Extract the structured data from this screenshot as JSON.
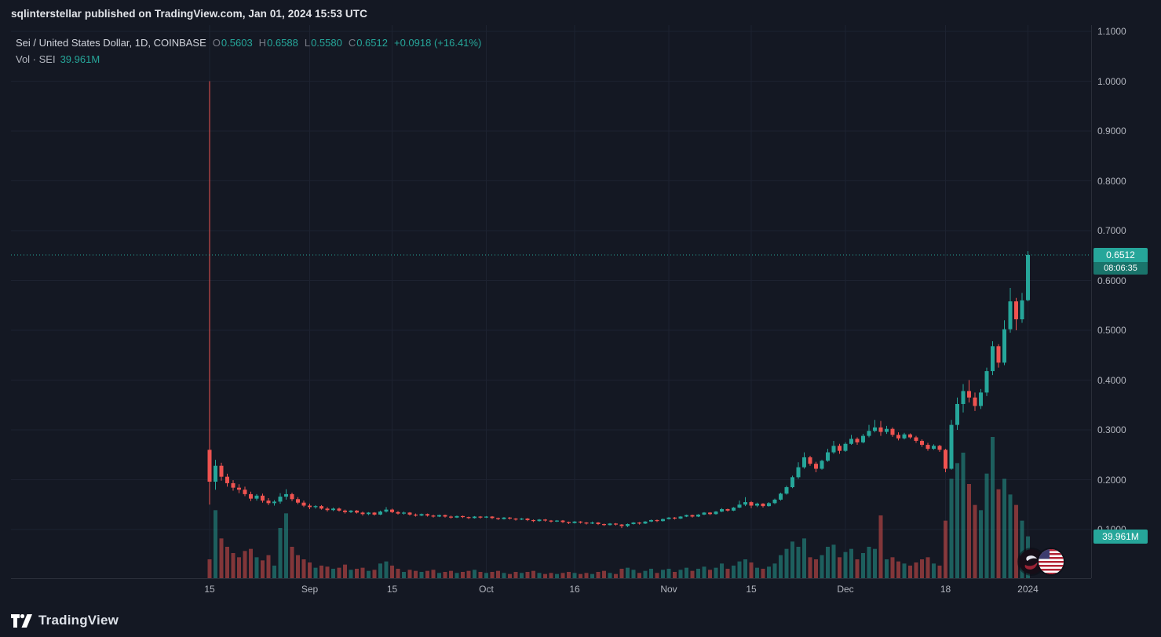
{
  "header": {
    "text": "sqlinterstellar published on TradingView.com, Jan 01, 2024 15:53 UTC"
  },
  "legend": {
    "title": "Sei / United States Dollar, 1D, COINBASE",
    "o_label": "O",
    "o": "0.5603",
    "h_label": "H",
    "h": "0.6588",
    "l_label": "L",
    "l": "0.5580",
    "c_label": "C",
    "c": "0.6512",
    "change": "+0.0918 (+16.41%)",
    "volume_label": "Vol · SEI",
    "volume_value": "39.961M"
  },
  "price_scale": {
    "current_price": "0.6512",
    "countdown": "08:06:35",
    "volume_badge": "39.961M"
  },
  "footer": {
    "brand": "TradingView"
  },
  "colors": {
    "background": "#141823",
    "up": "#26a69a",
    "down": "#ef5350",
    "grid": "#1d2230",
    "border": "#2a2e39",
    "text_primary": "#d1d4dc",
    "text_secondary": "#b2b5be",
    "label_gray": "#787b86",
    "countdown_bg": "#1a746b",
    "badge_text": "#ffffff"
  },
  "chart_data": {
    "type": "candlestick+volume",
    "symbol": "SEI / USD",
    "exchange": "COINBASE",
    "timeframe": "1D",
    "start_date": "2023-08-15",
    "current_price": 0.6512,
    "last_ohlc": {
      "open": 0.5603,
      "high": 0.6588,
      "low": 0.558,
      "close": 0.6512
    },
    "change_abs": 0.0918,
    "change_pct": 16.41,
    "last_volume": "39.961M",
    "volume_unit": "M",
    "y_axis": {
      "min": 0.1,
      "max": 1.1,
      "ticks": [
        1.1,
        1.0,
        0.9,
        0.8,
        0.7,
        0.6,
        0.5,
        0.4,
        0.3,
        0.2,
        0.1
      ]
    },
    "time_labels": [
      {
        "text": "15",
        "i": 0,
        "major": false
      },
      {
        "text": "Sep",
        "i": 17,
        "major": true
      },
      {
        "text": "15",
        "i": 31,
        "major": false
      },
      {
        "text": "Oct",
        "i": 47,
        "major": true
      },
      {
        "text": "16",
        "i": 62,
        "major": false
      },
      {
        "text": "Nov",
        "i": 78,
        "major": true
      },
      {
        "text": "15",
        "i": 92,
        "major": false
      },
      {
        "text": "Dec",
        "i": 108,
        "major": true
      },
      {
        "text": "18",
        "i": 125,
        "major": false
      },
      {
        "text": "2024",
        "i": 139,
        "major": true
      }
    ],
    "candles": [
      [
        0.26,
        1.0,
        0.15,
        0.196,
        18
      ],
      [
        0.196,
        0.24,
        0.18,
        0.228,
        65
      ],
      [
        0.228,
        0.234,
        0.198,
        0.206,
        38
      ],
      [
        0.206,
        0.212,
        0.186,
        0.193,
        30
      ],
      [
        0.193,
        0.199,
        0.178,
        0.184,
        24
      ],
      [
        0.184,
        0.191,
        0.173,
        0.18,
        20
      ],
      [
        0.18,
        0.186,
        0.167,
        0.171,
        26
      ],
      [
        0.171,
        0.176,
        0.157,
        0.162,
        28
      ],
      [
        0.162,
        0.171,
        0.158,
        0.168,
        20
      ],
      [
        0.168,
        0.172,
        0.154,
        0.158,
        17
      ],
      [
        0.158,
        0.163,
        0.149,
        0.153,
        22
      ],
      [
        0.153,
        0.159,
        0.148,
        0.156,
        12
      ],
      [
        0.156,
        0.173,
        0.152,
        0.166,
        48
      ],
      [
        0.166,
        0.181,
        0.16,
        0.171,
        62
      ],
      [
        0.171,
        0.174,
        0.157,
        0.161,
        30
      ],
      [
        0.161,
        0.165,
        0.151,
        0.154,
        22
      ],
      [
        0.154,
        0.158,
        0.145,
        0.148,
        18
      ],
      [
        0.148,
        0.152,
        0.141,
        0.145,
        15
      ],
      [
        0.145,
        0.149,
        0.142,
        0.147,
        10
      ],
      [
        0.147,
        0.149,
        0.14,
        0.142,
        12
      ],
      [
        0.142,
        0.145,
        0.136,
        0.139,
        11
      ],
      [
        0.139,
        0.144,
        0.137,
        0.142,
        9
      ],
      [
        0.142,
        0.144,
        0.136,
        0.138,
        10
      ],
      [
        0.138,
        0.14,
        0.132,
        0.135,
        13
      ],
      [
        0.135,
        0.139,
        0.133,
        0.138,
        8
      ],
      [
        0.138,
        0.139,
        0.132,
        0.134,
        9
      ],
      [
        0.134,
        0.136,
        0.128,
        0.131,
        10
      ],
      [
        0.131,
        0.135,
        0.129,
        0.134,
        7
      ],
      [
        0.134,
        0.135,
        0.128,
        0.13,
        8
      ],
      [
        0.13,
        0.138,
        0.129,
        0.136,
        14
      ],
      [
        0.136,
        0.145,
        0.134,
        0.14,
        16
      ],
      [
        0.14,
        0.142,
        0.133,
        0.135,
        12
      ],
      [
        0.135,
        0.137,
        0.13,
        0.132,
        9
      ],
      [
        0.132,
        0.136,
        0.13,
        0.134,
        6
      ],
      [
        0.134,
        0.135,
        0.128,
        0.13,
        8
      ],
      [
        0.13,
        0.132,
        0.126,
        0.128,
        7
      ],
      [
        0.128,
        0.132,
        0.127,
        0.131,
        6
      ],
      [
        0.131,
        0.132,
        0.126,
        0.128,
        7
      ],
      [
        0.128,
        0.13,
        0.124,
        0.126,
        8
      ],
      [
        0.126,
        0.13,
        0.125,
        0.129,
        5
      ],
      [
        0.129,
        0.13,
        0.124,
        0.126,
        6
      ],
      [
        0.126,
        0.128,
        0.122,
        0.124,
        7
      ],
      [
        0.124,
        0.128,
        0.123,
        0.127,
        5
      ],
      [
        0.127,
        0.128,
        0.123,
        0.125,
        6
      ],
      [
        0.125,
        0.126,
        0.121,
        0.123,
        7
      ],
      [
        0.123,
        0.127,
        0.122,
        0.126,
        8
      ],
      [
        0.126,
        0.127,
        0.122,
        0.124,
        6
      ],
      [
        0.124,
        0.127,
        0.123,
        0.126,
        5
      ],
      [
        0.126,
        0.127,
        0.121,
        0.123,
        6
      ],
      [
        0.123,
        0.124,
        0.119,
        0.121,
        7
      ],
      [
        0.121,
        0.125,
        0.12,
        0.124,
        5
      ],
      [
        0.124,
        0.125,
        0.12,
        0.122,
        4
      ],
      [
        0.122,
        0.123,
        0.118,
        0.12,
        6
      ],
      [
        0.12,
        0.123,
        0.119,
        0.122,
        5
      ],
      [
        0.122,
        0.123,
        0.117,
        0.119,
        6
      ],
      [
        0.119,
        0.12,
        0.115,
        0.117,
        7
      ],
      [
        0.117,
        0.121,
        0.116,
        0.12,
        5
      ],
      [
        0.12,
        0.121,
        0.116,
        0.118,
        4
      ],
      [
        0.118,
        0.119,
        0.114,
        0.116,
        5
      ],
      [
        0.116,
        0.119,
        0.115,
        0.118,
        4
      ],
      [
        0.118,
        0.119,
        0.113,
        0.115,
        5
      ],
      [
        0.115,
        0.116,
        0.111,
        0.113,
        6
      ],
      [
        0.113,
        0.117,
        0.112,
        0.116,
        5
      ],
      [
        0.116,
        0.117,
        0.112,
        0.114,
        4
      ],
      [
        0.114,
        0.115,
        0.11,
        0.112,
        5
      ],
      [
        0.112,
        0.116,
        0.111,
        0.114,
        4
      ],
      [
        0.114,
        0.115,
        0.109,
        0.111,
        6
      ],
      [
        0.111,
        0.112,
        0.107,
        0.109,
        7
      ],
      [
        0.109,
        0.113,
        0.108,
        0.112,
        5
      ],
      [
        0.112,
        0.113,
        0.108,
        0.11,
        4
      ],
      [
        0.11,
        0.111,
        0.103,
        0.107,
        9
      ],
      [
        0.107,
        0.112,
        0.105,
        0.111,
        10
      ],
      [
        0.111,
        0.115,
        0.11,
        0.114,
        8
      ],
      [
        0.114,
        0.115,
        0.11,
        0.112,
        5
      ],
      [
        0.112,
        0.117,
        0.111,
        0.116,
        7
      ],
      [
        0.116,
        0.12,
        0.115,
        0.119,
        9
      ],
      [
        0.119,
        0.12,
        0.115,
        0.117,
        5
      ],
      [
        0.117,
        0.122,
        0.116,
        0.121,
        8
      ],
      [
        0.121,
        0.125,
        0.12,
        0.124,
        9
      ],
      [
        0.124,
        0.125,
        0.12,
        0.122,
        6
      ],
      [
        0.122,
        0.127,
        0.121,
        0.126,
        8
      ],
      [
        0.126,
        0.13,
        0.125,
        0.129,
        10
      ],
      [
        0.129,
        0.13,
        0.124,
        0.126,
        7
      ],
      [
        0.126,
        0.131,
        0.125,
        0.13,
        9
      ],
      [
        0.13,
        0.135,
        0.129,
        0.134,
        11
      ],
      [
        0.134,
        0.135,
        0.129,
        0.131,
        8
      ],
      [
        0.131,
        0.137,
        0.13,
        0.136,
        10
      ],
      [
        0.136,
        0.143,
        0.135,
        0.141,
        14
      ],
      [
        0.141,
        0.142,
        0.136,
        0.138,
        9
      ],
      [
        0.138,
        0.145,
        0.137,
        0.144,
        12
      ],
      [
        0.144,
        0.158,
        0.143,
        0.15,
        16
      ],
      [
        0.15,
        0.165,
        0.147,
        0.155,
        18
      ],
      [
        0.155,
        0.157,
        0.143,
        0.148,
        15
      ],
      [
        0.148,
        0.154,
        0.145,
        0.152,
        10
      ],
      [
        0.152,
        0.153,
        0.144,
        0.147,
        9
      ],
      [
        0.147,
        0.155,
        0.146,
        0.153,
        11
      ],
      [
        0.153,
        0.162,
        0.151,
        0.16,
        14
      ],
      [
        0.16,
        0.174,
        0.158,
        0.172,
        22
      ],
      [
        0.172,
        0.188,
        0.17,
        0.185,
        28
      ],
      [
        0.185,
        0.208,
        0.183,
        0.205,
        35
      ],
      [
        0.205,
        0.235,
        0.202,
        0.225,
        30
      ],
      [
        0.225,
        0.255,
        0.222,
        0.245,
        38
      ],
      [
        0.245,
        0.248,
        0.228,
        0.232,
        20
      ],
      [
        0.232,
        0.236,
        0.215,
        0.222,
        18
      ],
      [
        0.222,
        0.24,
        0.22,
        0.238,
        22
      ],
      [
        0.238,
        0.262,
        0.236,
        0.255,
        30
      ],
      [
        0.255,
        0.278,
        0.252,
        0.268,
        32
      ],
      [
        0.268,
        0.272,
        0.252,
        0.258,
        20
      ],
      [
        0.258,
        0.275,
        0.256,
        0.272,
        25
      ],
      [
        0.272,
        0.29,
        0.27,
        0.282,
        28
      ],
      [
        0.282,
        0.285,
        0.27,
        0.275,
        18
      ],
      [
        0.275,
        0.292,
        0.273,
        0.288,
        24
      ],
      [
        0.288,
        0.31,
        0.285,
        0.298,
        30
      ],
      [
        0.298,
        0.32,
        0.295,
        0.305,
        28
      ],
      [
        0.305,
        0.318,
        0.288,
        0.296,
        60
      ],
      [
        0.296,
        0.308,
        0.292,
        0.302,
        18
      ],
      [
        0.302,
        0.305,
        0.286,
        0.29,
        20
      ],
      [
        0.29,
        0.295,
        0.279,
        0.283,
        16
      ],
      [
        0.283,
        0.294,
        0.281,
        0.291,
        14
      ],
      [
        0.291,
        0.293,
        0.282,
        0.285,
        12
      ],
      [
        0.285,
        0.288,
        0.274,
        0.278,
        15
      ],
      [
        0.278,
        0.281,
        0.266,
        0.27,
        18
      ],
      [
        0.27,
        0.274,
        0.258,
        0.262,
        20
      ],
      [
        0.262,
        0.271,
        0.26,
        0.268,
        14
      ],
      [
        0.268,
        0.27,
        0.256,
        0.26,
        12
      ],
      [
        0.26,
        0.262,
        0.215,
        0.222,
        55
      ],
      [
        0.222,
        0.32,
        0.22,
        0.31,
        95
      ],
      [
        0.31,
        0.365,
        0.3,
        0.352,
        110
      ],
      [
        0.352,
        0.392,
        0.335,
        0.378,
        120
      ],
      [
        0.378,
        0.4,
        0.355,
        0.365,
        90
      ],
      [
        0.365,
        0.375,
        0.338,
        0.348,
        70
      ],
      [
        0.348,
        0.382,
        0.342,
        0.375,
        65
      ],
      [
        0.375,
        0.425,
        0.368,
        0.418,
        100
      ],
      [
        0.418,
        0.478,
        0.41,
        0.468,
        135
      ],
      [
        0.468,
        0.472,
        0.425,
        0.435,
        85
      ],
      [
        0.435,
        0.52,
        0.43,
        0.502,
        95
      ],
      [
        0.502,
        0.585,
        0.495,
        0.558,
        80
      ],
      [
        0.558,
        0.565,
        0.5,
        0.522,
        70
      ],
      [
        0.522,
        0.575,
        0.515,
        0.56,
        55
      ],
      [
        0.5603,
        0.6588,
        0.558,
        0.6512,
        39.961
      ]
    ]
  }
}
